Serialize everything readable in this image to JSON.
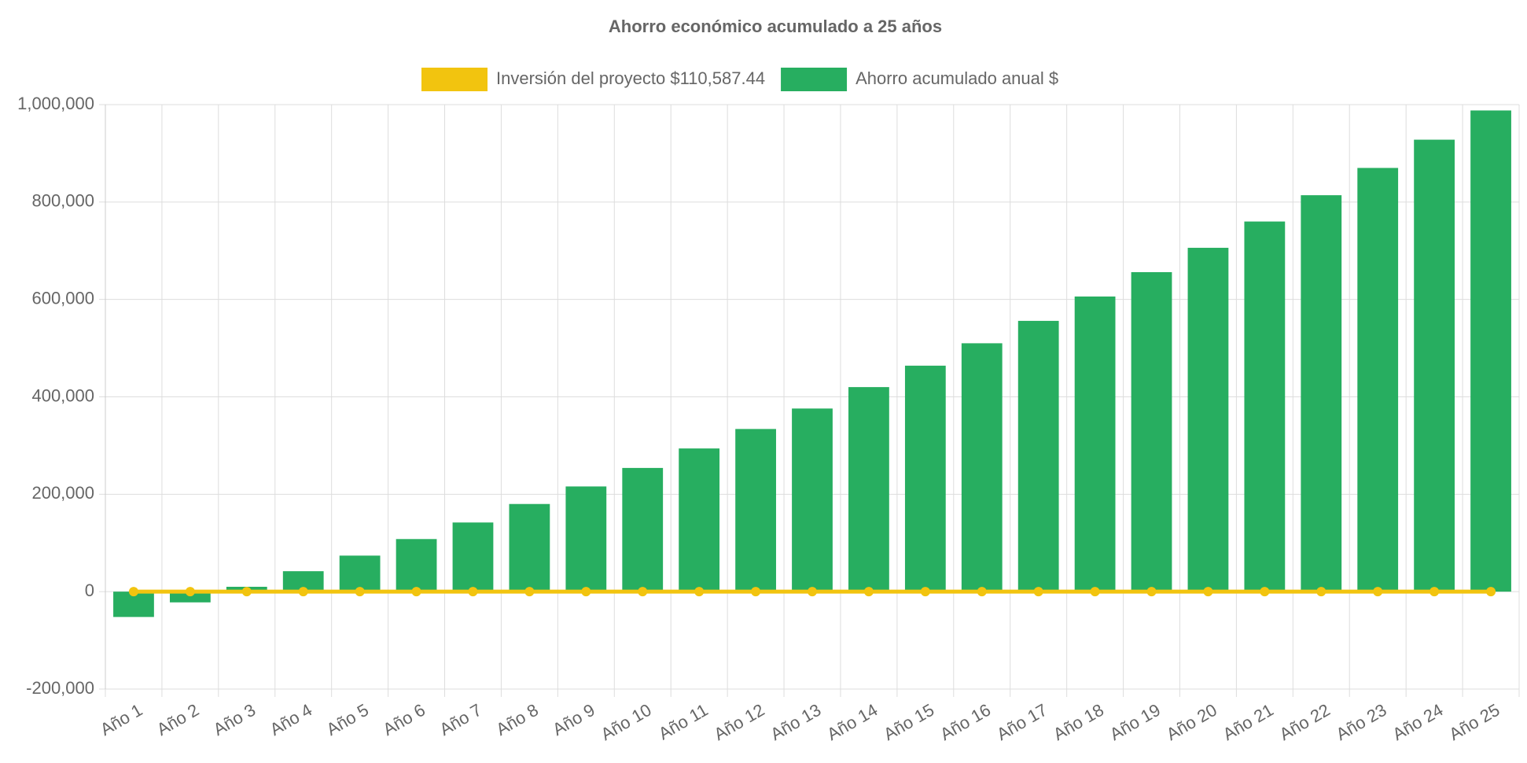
{
  "chart_data": {
    "type": "bar",
    "title": "Ahorro económico acumulado a 25 años",
    "categories": [
      "Año 1",
      "Año 2",
      "Año 3",
      "Año 4",
      "Año 5",
      "Año 6",
      "Año 7",
      "Año 8",
      "Año 9",
      "Año 10",
      "Año 11",
      "Año 12",
      "Año 13",
      "Año 14",
      "Año 15",
      "Año 16",
      "Año 17",
      "Año 18",
      "Año 19",
      "Año 20",
      "Año 21",
      "Año 22",
      "Año 23",
      "Año 24",
      "Año 25"
    ],
    "series": [
      {
        "name": "Inversión del proyecto $110,587.44",
        "type": "line",
        "color": "#f2c40f",
        "values": [
          0,
          0,
          0,
          0,
          0,
          0,
          0,
          0,
          0,
          0,
          0,
          0,
          0,
          0,
          0,
          0,
          0,
          0,
          0,
          0,
          0,
          0,
          0,
          0,
          0
        ]
      },
      {
        "name": "Ahorro acumulado anual $",
        "type": "bar",
        "color": "#27ae60",
        "values": [
          -52000,
          -22000,
          10000,
          42000,
          74000,
          108000,
          142000,
          180000,
          216000,
          254000,
          294000,
          334000,
          376000,
          420000,
          464000,
          510000,
          556000,
          606000,
          656000,
          706000,
          760000,
          814000,
          870000,
          928000,
          988000
        ]
      }
    ],
    "ylim": [
      -200000,
      1000000
    ],
    "yticks": [
      {
        "value": -200000,
        "label": "-200,000"
      },
      0,
      {
        "value": 200000,
        "label": "200,000"
      },
      {
        "value": 400000,
        "label": "400,000"
      },
      {
        "value": 600000,
        "label": "600,000"
      },
      {
        "value": 800000,
        "label": "800,000"
      },
      {
        "value": 1000000,
        "label": "1,000,000"
      }
    ],
    "grid": true,
    "legend": "top"
  }
}
